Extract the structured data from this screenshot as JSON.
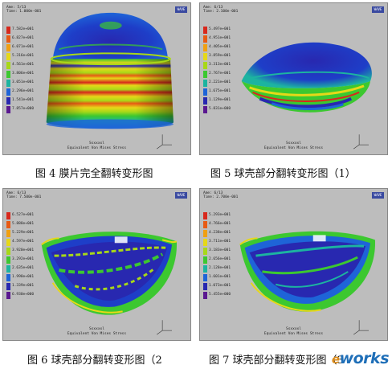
{
  "legend_colors": [
    "#d8281c",
    "#e85a14",
    "#f0a012",
    "#e6d818",
    "#a8d818",
    "#3cc830",
    "#1cb4a0",
    "#1e64d8",
    "#2828b0",
    "#5a1890"
  ],
  "panels": [
    {
      "header": [
        "Ame: 5/13",
        "Time: 1.000e-001"
      ],
      "logo": "WAVE",
      "legend_values": [
        "7.582e+001",
        "6.827e+001",
        "6.071e+001",
        "5.316e+001",
        "4.561e+001",
        "3.806e+001",
        "3.051e+001",
        "2.296e+001",
        "1.541e+001",
        "7.857e+000"
      ],
      "footer": [
        "Ssxxxxl",
        "Equivalent Von Mises Stress"
      ],
      "caption": "图 4  膜片完全翻转变形图"
    },
    {
      "header": [
        "Ame: 6/13",
        "Time: 2.100e-001"
      ],
      "logo": "WAVE",
      "legend_values": [
        "5.497e+001",
        "4.951e+001",
        "4.405e+001",
        "3.859e+001",
        "3.313e+001",
        "2.767e+001",
        "2.221e+001",
        "1.675e+001",
        "1.129e+001",
        "5.831e+000"
      ],
      "footer": [
        "Ssxxxxl",
        "Equivalent Von Mises Stress"
      ],
      "caption": "图 5  球壳部分翻转变形图（1）"
    },
    {
      "header": [
        "Ame: 6/13",
        "Time: 7.500e-001"
      ],
      "logo": "WAVE",
      "legend_values": [
        "6.527e+001",
        "5.888e+001",
        "5.229e+001",
        "4.597e+001",
        "3.920e+001",
        "3.292e+001",
        "2.635e+001",
        "1.998e+001",
        "1.339e+001",
        "6.930e+000"
      ],
      "footer": [
        "Ssxxxxl",
        "Equivalent Von Mises Stress"
      ],
      "caption": "图 6  球壳部分翻转变形图（2"
    },
    {
      "header": [
        "Ame: 6/13",
        "Time: 2.700e-001"
      ],
      "logo": "WAVE",
      "legend_values": [
        "5.293e+001",
        "4.766e+001",
        "4.238e+001",
        "3.711e+001",
        "3.183e+001",
        "2.656e+001",
        "2.128e+001",
        "1.601e+001",
        "1.073e+001",
        "5.455e+000"
      ],
      "footer": [
        "Ssxxxxl",
        "Equivalent Von Mises Stress"
      ],
      "caption": "图 7  球壳部分翻转变形图（3"
    }
  ],
  "watermark": {
    "e": "e",
    "works": "works"
  }
}
